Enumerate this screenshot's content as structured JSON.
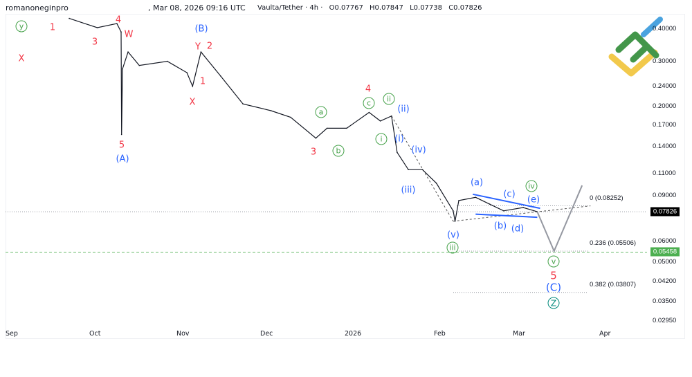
{
  "header": {
    "author": "romanoneginpro",
    "timestamp": ", Mar 08, 2026 09:16 UTC"
  },
  "legend": {
    "symbol": "Vaulta/Tether · 4h ·",
    "open": "O0.07767",
    "high": "H0.07847",
    "low": "L0.07738",
    "close": "C0.07826"
  },
  "colors": {
    "wave_red": "#f23645",
    "wave_blue": "#2962ff",
    "wave_green": "#43a047",
    "wave_teal": "#00897b",
    "price_tag": "#000000",
    "target_tag": "#4caf50",
    "logo_green": "#43964a",
    "logo_yellow": "#f2c94c",
    "logo_blue": "#4aa3df"
  },
  "chart_data": {
    "type": "line",
    "yscale": "log",
    "ylim": [
      0.0275,
      0.44
    ],
    "y_ticks": [
      "0.40000",
      "0.30000",
      "0.24000",
      "0.20000",
      "0.17000",
      "0.14000",
      "0.11000",
      "0.09000",
      "0.06000",
      "0.05000",
      "0.04200",
      "0.03500",
      "0.02950"
    ],
    "x_ticks": [
      "Sep",
      "Oct",
      "Nov",
      "Dec",
      "2026",
      "Feb",
      "Mar",
      "Apr"
    ],
    "grid": false,
    "series": [
      {
        "x": [
          "2025-09-22",
          "2025-10-02",
          "2025-10-09",
          "2025-10-10T12:00",
          "2025-10-10T16:00",
          "2025-10-11",
          "2025-10-13",
          "2025-10-17",
          "2025-10-27",
          "2025-11-03",
          "2025-11-05",
          "2025-11-08",
          "2025-11-15",
          "2025-11-23",
          "2025-12-03",
          "2025-12-10",
          "2025-12-19",
          "2025-12-23",
          "2025-12-30",
          "2026-01-07",
          "2026-01-11",
          "2026-01-15",
          "2026-01-17",
          "2026-01-21",
          "2026-01-26",
          "2026-01-31",
          "2026-02-06",
          "2026-02-06T16:00",
          "2026-02-08",
          "2026-02-14",
          "2026-02-19",
          "2026-02-24",
          "2026-03-03",
          "2026-03-08"
        ],
        "y": [
          0.44,
          0.405,
          0.42,
          0.39,
          0.156,
          0.28,
          0.326,
          0.289,
          0.3,
          0.271,
          0.24,
          0.326,
          0.263,
          0.205,
          0.193,
          0.182,
          0.151,
          0.165,
          0.165,
          0.19,
          0.176,
          0.184,
          0.133,
          0.114,
          0.114,
          0.101,
          0.0789,
          0.0719,
          0.0865,
          0.089,
          0.0838,
          0.0789,
          0.0813,
          0.07826
        ]
      }
    ],
    "projection": {
      "x": [
        "2026-03-08",
        "2026-03-14",
        "2026-03-24"
      ],
      "y": [
        0.07826,
        0.0551,
        0.099
      ]
    },
    "trendlines": {
      "triangle_upper": {
        "x": [
          "2026-02-13",
          "2026-03-09"
        ],
        "y": [
          0.0915,
          0.0807
        ]
      },
      "triangle_lower": {
        "x": [
          "2026-02-14",
          "2026-03-08"
        ],
        "y": [
          0.0766,
          0.0745
        ]
      },
      "channel_top": {
        "x": [
          "2026-01-15",
          "2026-02-06"
        ],
        "y": [
          0.184,
          0.0719
        ]
      },
      "channel_base": {
        "x": [
          "2026-02-06",
          "2026-03-27"
        ],
        "y": [
          0.0719,
          0.0825
        ]
      }
    },
    "fibonacci": [
      {
        "label": "0 (0.08252)",
        "price": 0.08252
      },
      {
        "label": "0.236 (0.05506)",
        "price": 0.05506
      },
      {
        "label": "0.382 (0.03807)",
        "price": 0.03807
      }
    ],
    "current_price": "0.07826",
    "target_price": "0.05458",
    "wave_labels": {
      "l1": "y",
      "l2": "1",
      "l3": "3",
      "l4": "4",
      "l5": "W",
      "l6": "X",
      "l7": "5",
      "l8": "(A)",
      "l9": "(B)",
      "l10": "Y",
      "l11": "2",
      "l12": "1",
      "l13": "X",
      "l14": "3",
      "l15": "a",
      "l16": "b",
      "l17": "c",
      "l18": "4",
      "l19": "ii",
      "l20": "(ii)",
      "l21": "i",
      "l22": "(i)",
      "l23": "(iv)",
      "l24": "(iii)",
      "l25": "(a)",
      "l26": "(c)",
      "l27": "iv",
      "l28": "(e)",
      "l29": "(b)",
      "l30": "(d)",
      "l31": "(v)",
      "l32": "iii",
      "l33": "v",
      "l34": "5",
      "l35": "(C)",
      "l36": "Z"
    }
  }
}
